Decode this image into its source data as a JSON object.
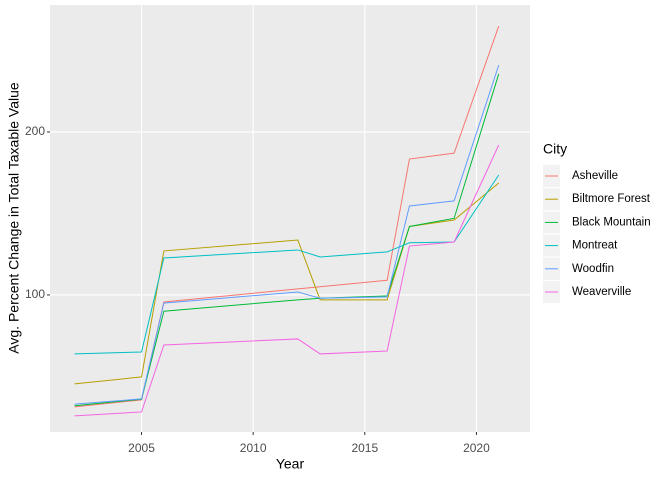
{
  "chart_data": {
    "type": "line",
    "x_label": "Year",
    "y_label": "Avg. Percent Change in Total Taxable Value",
    "legend_title": "City",
    "legend_position": "right",
    "grid": true,
    "x": [
      2002,
      2005,
      2006,
      2012,
      2013,
      2016,
      2017,
      2019,
      2021
    ],
    "xlim": [
      2000.9,
      2022.4
    ],
    "xticks": [
      2005,
      2010,
      2015,
      2020
    ],
    "ylim": [
      15.9,
      277.9
    ],
    "yticks": [
      100,
      200
    ],
    "series": [
      {
        "name": "Asheville",
        "color": "#F8766D",
        "values": [
          31.3,
          35.6,
          95.7,
          103.7,
          105,
          109,
          183.4,
          187,
          265
        ]
      },
      {
        "name": "Biltmore Forest",
        "color": "#B79F00",
        "values": [
          45.4,
          49.7,
          127,
          133.7,
          97,
          97,
          142,
          146,
          168.7
        ]
      },
      {
        "name": "Black Mountain",
        "color": "#00BA38",
        "values": [
          32,
          36,
          90,
          97,
          98,
          99.4,
          142,
          147,
          235.6
        ]
      },
      {
        "name": "Montreat",
        "color": "#00BFC4",
        "values": [
          63.8,
          65,
          122.7,
          127.6,
          123.3,
          126.4,
          132,
          132.5,
          173.6
        ]
      },
      {
        "name": "Woodfin",
        "color": "#619CFF",
        "values": [
          33,
          36.2,
          95,
          101.8,
          98,
          98.8,
          154.6,
          157.7,
          241
        ]
      },
      {
        "name": "Weaverville",
        "color": "#F564E3",
        "values": [
          25.8,
          28.2,
          69.3,
          73,
          63.8,
          65.6,
          130,
          132.5,
          192
        ]
      }
    ]
  }
}
